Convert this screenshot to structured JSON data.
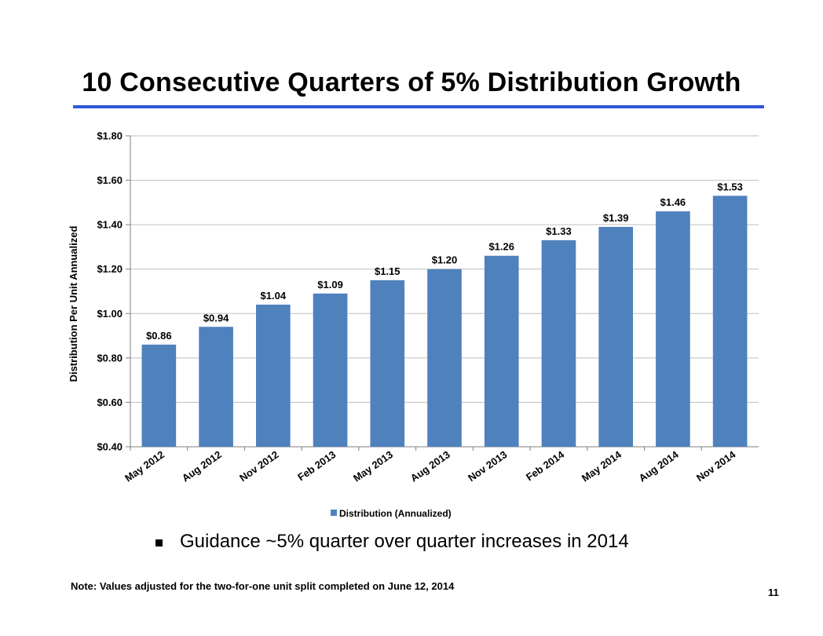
{
  "slide": {
    "title": "10 Consecutive Quarters of 5% Distribution Growth",
    "bullet": "Guidance ~5% quarter over quarter increases in 2014",
    "note": "Note:  Values adjusted for the two-for-one unit split completed on June 12, 2014",
    "page_number": "11"
  },
  "colors": {
    "accent_rule": "#2f58d8",
    "bar": "#4f81bd",
    "grid": "#bfbfbf"
  },
  "chart_data": {
    "type": "bar",
    "title": "",
    "xlabel": "",
    "ylabel": "Distribution Per Unit Annualized",
    "ylim": [
      0.4,
      1.8
    ],
    "ytick_values": [
      0.4,
      0.6,
      0.8,
      1.0,
      1.2,
      1.4,
      1.6,
      1.8
    ],
    "ytick_labels": [
      "$0.40",
      "$0.60",
      "$0.80",
      "$1.00",
      "$1.20",
      "$1.40",
      "$1.60",
      "$1.80"
    ],
    "grid": true,
    "legend_position": "bottom",
    "categories": [
      "May 2012",
      "Aug 2012",
      "Nov 2012",
      "Feb 2013",
      "May 2013",
      "Aug 2013",
      "Nov 2013",
      "Feb 2014",
      "May 2014",
      "Aug 2014",
      "Nov 2014"
    ],
    "series": [
      {
        "name": "Distribution (Annualized)",
        "values": [
          0.86,
          0.94,
          1.04,
          1.09,
          1.15,
          1.2,
          1.26,
          1.33,
          1.39,
          1.46,
          1.53
        ],
        "labels": [
          "$0.86",
          "$0.94",
          "$1.04",
          "$1.09",
          "$1.15",
          "$1.20",
          "$1.26",
          "$1.33",
          "$1.39",
          "$1.46",
          "$1.53"
        ]
      }
    ]
  }
}
